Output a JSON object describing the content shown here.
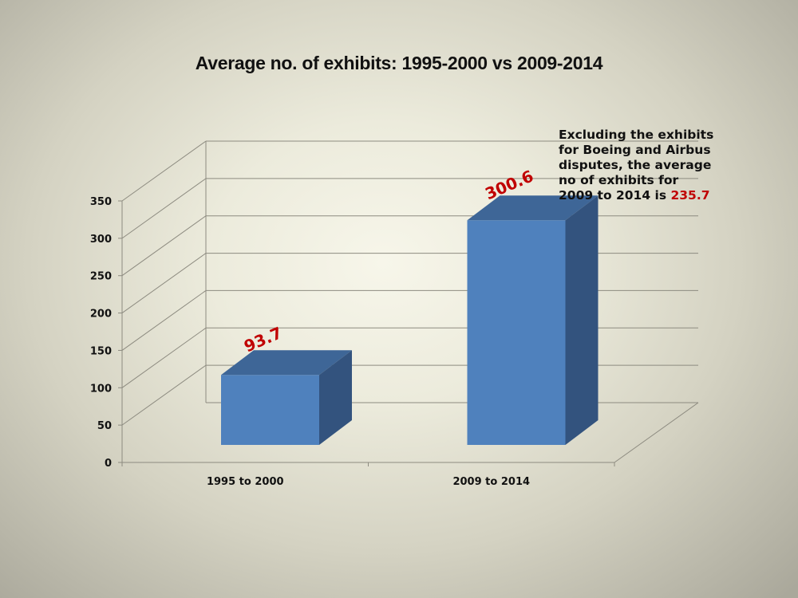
{
  "note": {
    "lines": [
      "Excluding the exhibits",
      "for Boeing and Airbus",
      "disputes, the average",
      "no of exhibits for",
      "2009 to 2014 is "
    ],
    "highlight": "235.7",
    "highlight_color": "#c00000"
  },
  "colors": {
    "bar_front": "#4f81bd",
    "bar_top": "#3e6697",
    "bar_side": "#33537e",
    "data_label": "#c00000"
  },
  "chart_data": {
    "type": "bar",
    "title": "Average no. of exhibits: 1995-2000 vs 2009-2014",
    "categories": [
      "1995 to 2000",
      "2009 to 2014"
    ],
    "values": [
      93.7,
      300.6
    ],
    "data_labels": [
      "93.7",
      "300.6"
    ],
    "yticks": [
      0,
      50,
      100,
      150,
      200,
      250,
      300,
      350
    ],
    "ylim": [
      0,
      350
    ],
    "grid": true,
    "style": "3d-column",
    "legend": "none"
  }
}
